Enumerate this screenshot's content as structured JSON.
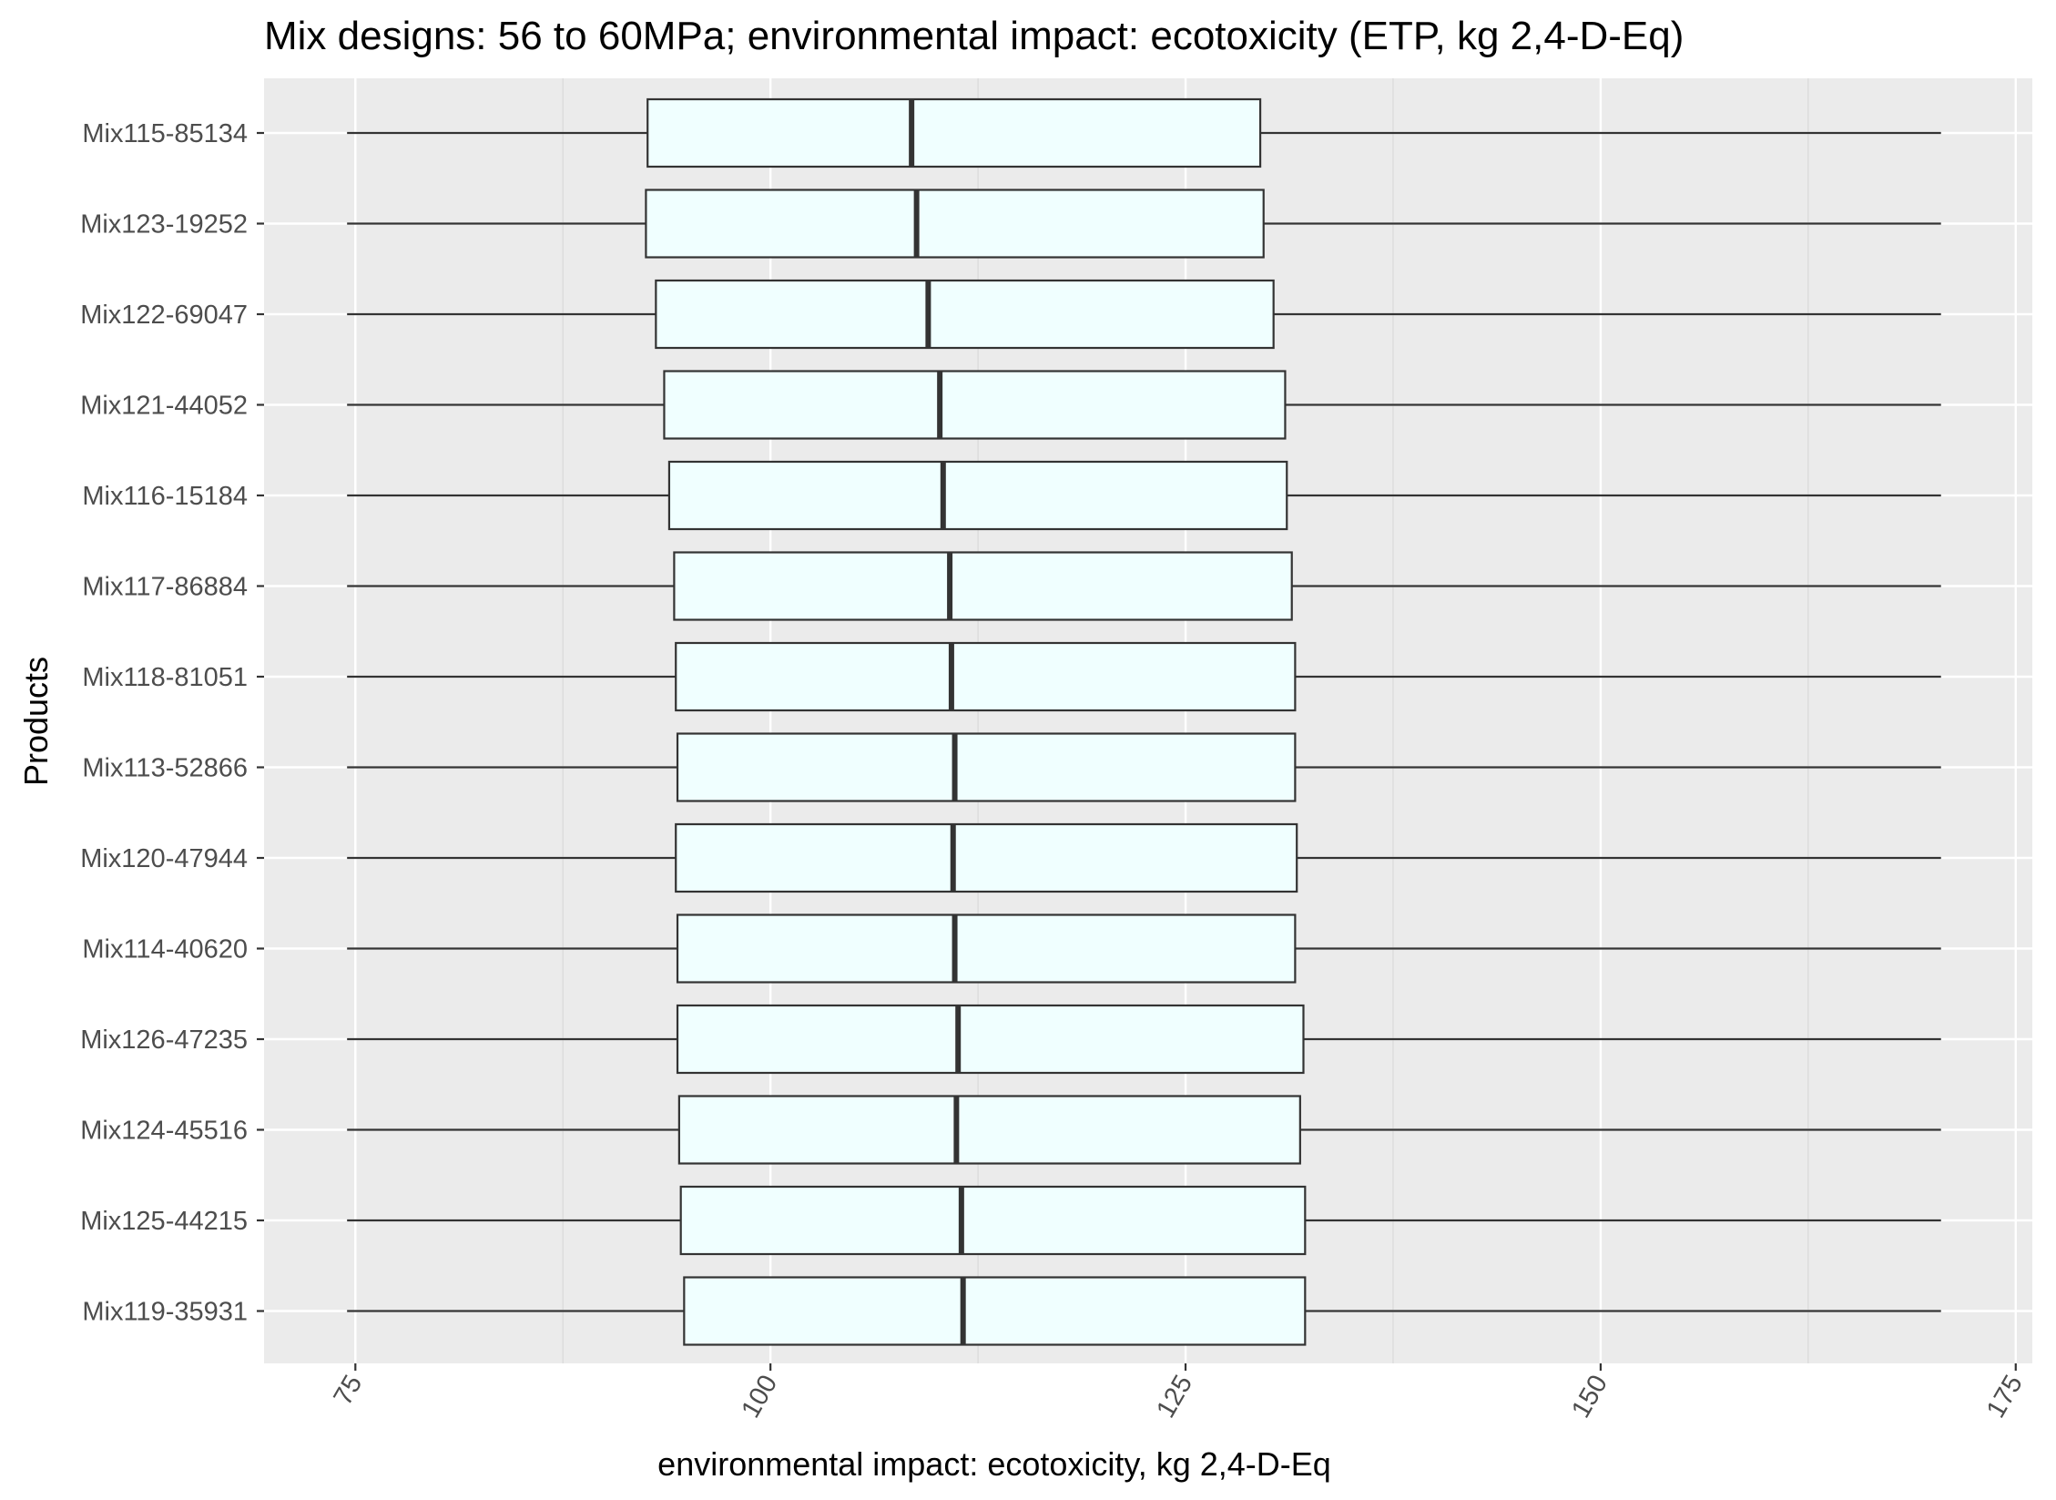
{
  "chart_data": {
    "type": "boxplot",
    "orientation": "horizontal",
    "title": "Mix designs: 56 to 60MPa; environmental impact: ecotoxicity (ETP, kg 2,4-D-Eq)",
    "xlabel": "environmental impact: ecotoxicity, kg 2,4-D-Eq",
    "ylabel": "Products",
    "xlim": [
      69.5,
      176
    ],
    "x_ticks": [
      75,
      100,
      125,
      150,
      175
    ],
    "x_tick_labels": [
      "75",
      "100",
      "125",
      "150",
      "175"
    ],
    "x_minor_ticks": [
      87.5,
      112.5,
      137.5,
      162.5
    ],
    "grid": true,
    "colors": {
      "panel": "#ebebeb",
      "gridline": "#ffffff",
      "box_fill": "#f0ffff",
      "box_stroke": "#333333"
    },
    "series": [
      {
        "name": "Mix115-85134",
        "min": 74.5,
        "q1": 92.6,
        "median": 108.5,
        "q3": 129.5,
        "max": 170.5
      },
      {
        "name": "Mix123-19252",
        "min": 74.5,
        "q1": 92.5,
        "median": 108.8,
        "q3": 129.7,
        "max": 170.5
      },
      {
        "name": "Mix122-69047",
        "min": 74.5,
        "q1": 93.1,
        "median": 109.5,
        "q3": 130.3,
        "max": 170.5
      },
      {
        "name": "Mix121-44052",
        "min": 74.5,
        "q1": 93.6,
        "median": 110.2,
        "q3": 131.0,
        "max": 170.5
      },
      {
        "name": "Mix116-15184",
        "min": 74.5,
        "q1": 93.9,
        "median": 110.4,
        "q3": 131.1,
        "max": 170.5
      },
      {
        "name": "Mix117-86884",
        "min": 74.5,
        "q1": 94.2,
        "median": 110.8,
        "q3": 131.4,
        "max": 170.5
      },
      {
        "name": "Mix118-81051",
        "min": 74.5,
        "q1": 94.3,
        "median": 110.9,
        "q3": 131.6,
        "max": 170.5
      },
      {
        "name": "Mix113-52866",
        "min": 74.5,
        "q1": 94.4,
        "median": 111.1,
        "q3": 131.6,
        "max": 170.5
      },
      {
        "name": "Mix120-47944",
        "min": 74.5,
        "q1": 94.3,
        "median": 111.0,
        "q3": 131.7,
        "max": 170.5
      },
      {
        "name": "Mix114-40620",
        "min": 74.5,
        "q1": 94.4,
        "median": 111.1,
        "q3": 131.6,
        "max": 170.5
      },
      {
        "name": "Mix126-47235",
        "min": 74.5,
        "q1": 94.4,
        "median": 111.3,
        "q3": 132.1,
        "max": 170.5
      },
      {
        "name": "Mix124-45516",
        "min": 74.5,
        "q1": 94.5,
        "median": 111.2,
        "q3": 131.9,
        "max": 170.5
      },
      {
        "name": "Mix125-44215",
        "min": 74.5,
        "q1": 94.6,
        "median": 111.5,
        "q3": 132.2,
        "max": 170.5
      },
      {
        "name": "Mix119-35931",
        "min": 74.5,
        "q1": 94.8,
        "median": 111.6,
        "q3": 132.2,
        "max": 170.5
      }
    ]
  }
}
